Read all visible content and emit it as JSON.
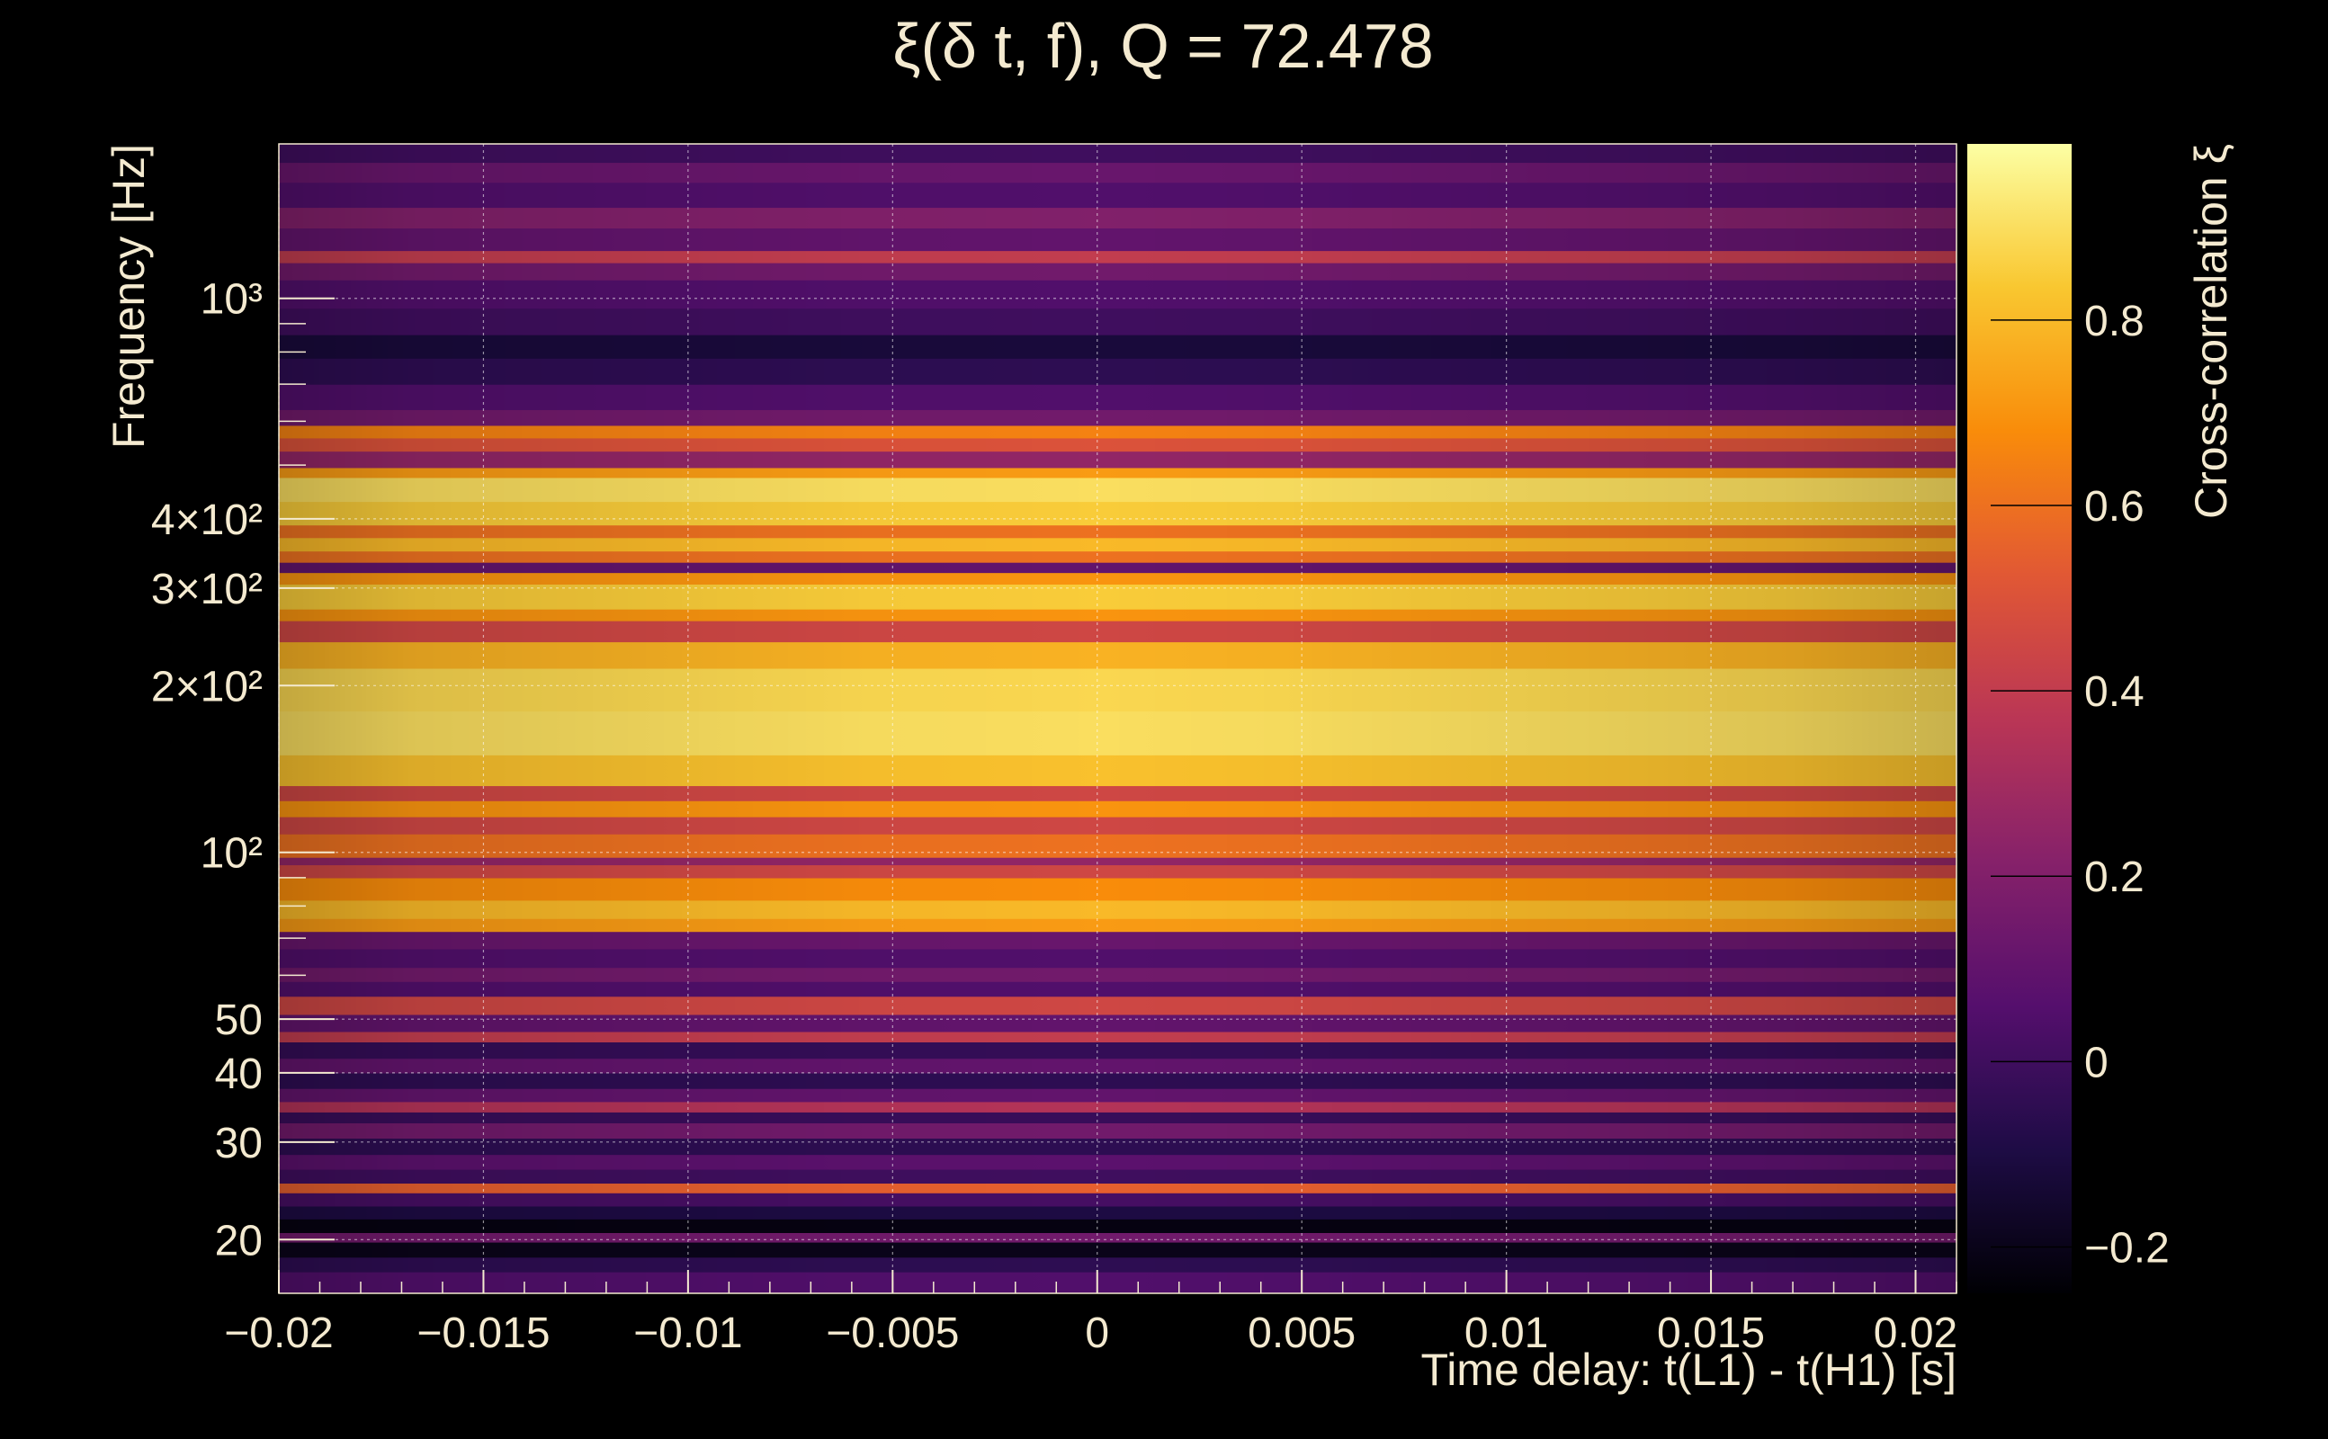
{
  "chart_data": {
    "type": "heatmap",
    "title": "ξ(δ t, f), Q = 72.478",
    "xlabel": "Time delay: t(L1) - t(H1) [s]",
    "ylabel": "Frequency [Hz]",
    "colorbar_label": "Cross-correlation ξ",
    "x_range": [
      -0.02,
      0.021
    ],
    "y_range": [
      16,
      1900
    ],
    "y_scale": "log",
    "color_range": [
      -0.25,
      0.99
    ],
    "colormap": "inferno",
    "grid": true,
    "x_ticks": [
      {
        "value": -0.02,
        "label": "−0.02"
      },
      {
        "value": -0.015,
        "label": "−0.015"
      },
      {
        "value": -0.01,
        "label": "−0.01"
      },
      {
        "value": -0.005,
        "label": "−0.005"
      },
      {
        "value": 0,
        "label": "0"
      },
      {
        "value": 0.005,
        "label": "0.005"
      },
      {
        "value": 0.01,
        "label": "0.01"
      },
      {
        "value": 0.015,
        "label": "0.015"
      },
      {
        "value": 0.02,
        "label": "0.02"
      }
    ],
    "y_ticks": [
      {
        "value": 20,
        "label": "20"
      },
      {
        "value": 30,
        "label": "30"
      },
      {
        "value": 40,
        "label": "40"
      },
      {
        "value": 50,
        "label": "50"
      },
      {
        "value": 100,
        "label": "10²"
      },
      {
        "value": 200,
        "label": "2×10²"
      },
      {
        "value": 300,
        "label": "3×10²"
      },
      {
        "value": 400,
        "label": "4×10²"
      },
      {
        "value": 1000,
        "label": "10³"
      }
    ],
    "colorbar_ticks": [
      {
        "value": -0.2,
        "label": "−0.2"
      },
      {
        "value": 0,
        "label": "0"
      },
      {
        "value": 0.2,
        "label": "0.2"
      },
      {
        "value": 0.4,
        "label": "0.4"
      },
      {
        "value": 0.6,
        "label": "0.6"
      },
      {
        "value": 0.8,
        "label": "0.8"
      }
    ],
    "frequency_bands": [
      {
        "f_low": 16,
        "f_high": 17.5,
        "value": 0.05
      },
      {
        "f_low": 17.5,
        "f_high": 18.6,
        "value": -0.05
      },
      {
        "f_low": 18.6,
        "f_high": 19.8,
        "value": -0.2
      },
      {
        "f_low": 19.8,
        "f_high": 20.6,
        "value": 0.15
      },
      {
        "f_low": 20.6,
        "f_high": 21.8,
        "value": -0.22
      },
      {
        "f_low": 21.8,
        "f_high": 23.0,
        "value": -0.1
      },
      {
        "f_low": 23.0,
        "f_high": 24.3,
        "value": 0.02
      },
      {
        "f_low": 24.3,
        "f_high": 25.3,
        "value": 0.55
      },
      {
        "f_low": 25.3,
        "f_high": 26.8,
        "value": 0.0
      },
      {
        "f_low": 26.8,
        "f_high": 28.5,
        "value": 0.08
      },
      {
        "f_low": 28.5,
        "f_high": 30.5,
        "value": -0.05
      },
      {
        "f_low": 30.5,
        "f_high": 32.5,
        "value": 0.15
      },
      {
        "f_low": 32.5,
        "f_high": 34.0,
        "value": -0.02
      },
      {
        "f_low": 34.0,
        "f_high": 35.5,
        "value": 0.35
      },
      {
        "f_low": 35.5,
        "f_high": 37.5,
        "value": 0.1
      },
      {
        "f_low": 37.5,
        "f_high": 40.0,
        "value": -0.05
      },
      {
        "f_low": 40.0,
        "f_high": 42.5,
        "value": 0.1
      },
      {
        "f_low": 42.5,
        "f_high": 45.5,
        "value": -0.03
      },
      {
        "f_low": 45.5,
        "f_high": 47.5,
        "value": 0.4
      },
      {
        "f_low": 47.5,
        "f_high": 51.0,
        "value": 0.1
      },
      {
        "f_low": 51.0,
        "f_high": 55.0,
        "value": 0.45
      },
      {
        "f_low": 55.0,
        "f_high": 58.5,
        "value": 0.05
      },
      {
        "f_low": 58.5,
        "f_high": 62.0,
        "value": 0.15
      },
      {
        "f_low": 62.0,
        "f_high": 67.0,
        "value": 0.05
      },
      {
        "f_low": 67.0,
        "f_high": 72.0,
        "value": 0.12
      },
      {
        "f_low": 72.0,
        "f_high": 76.0,
        "value": 0.72
      },
      {
        "f_low": 76.0,
        "f_high": 82.0,
        "value": 0.8
      },
      {
        "f_low": 82.0,
        "f_high": 90.0,
        "value": 0.68
      },
      {
        "f_low": 90.0,
        "f_high": 95.0,
        "value": 0.45
      },
      {
        "f_low": 95.0,
        "f_high": 98.0,
        "value": 0.25
      },
      {
        "f_low": 98.0,
        "f_high": 108.0,
        "value": 0.6
      },
      {
        "f_low": 108.0,
        "f_high": 116.0,
        "value": 0.45
      },
      {
        "f_low": 116.0,
        "f_high": 124.0,
        "value": 0.7
      },
      {
        "f_low": 124.0,
        "f_high": 132.0,
        "value": 0.45
      },
      {
        "f_low": 132.0,
        "f_high": 150.0,
        "value": 0.82
      },
      {
        "f_low": 150.0,
        "f_high": 180.0,
        "value": 0.9
      },
      {
        "f_low": 180.0,
        "f_high": 215.0,
        "value": 0.88
      },
      {
        "f_low": 215.0,
        "f_high": 240.0,
        "value": 0.78
      },
      {
        "f_low": 240.0,
        "f_high": 262.0,
        "value": 0.45
      },
      {
        "f_low": 262.0,
        "f_high": 275.0,
        "value": 0.7
      },
      {
        "f_low": 275.0,
        "f_high": 305.0,
        "value": 0.85
      },
      {
        "f_low": 305.0,
        "f_high": 320.0,
        "value": 0.7
      },
      {
        "f_low": 320.0,
        "f_high": 334.0,
        "value": 0.1
      },
      {
        "f_low": 334.0,
        "f_high": 350.0,
        "value": 0.6
      },
      {
        "f_low": 350.0,
        "f_high": 370.0,
        "value": 0.8
      },
      {
        "f_low": 370.0,
        "f_high": 390.0,
        "value": 0.6
      },
      {
        "f_low": 390.0,
        "f_high": 430.0,
        "value": 0.85
      },
      {
        "f_low": 430.0,
        "f_high": 475.0,
        "value": 0.9
      },
      {
        "f_low": 475.0,
        "f_high": 495.0,
        "value": 0.72
      },
      {
        "f_low": 495.0,
        "f_high": 530.0,
        "value": 0.25
      },
      {
        "f_low": 530.0,
        "f_high": 560.0,
        "value": 0.5
      },
      {
        "f_low": 560.0,
        "f_high": 590.0,
        "value": 0.65
      },
      {
        "f_low": 590.0,
        "f_high": 630.0,
        "value": 0.15
      },
      {
        "f_low": 630.0,
        "f_high": 700.0,
        "value": 0.05
      },
      {
        "f_low": 700.0,
        "f_high": 780.0,
        "value": -0.05
      },
      {
        "f_low": 780.0,
        "f_high": 860.0,
        "value": -0.12
      },
      {
        "f_low": 860.0,
        "f_high": 960.0,
        "value": 0.0
      },
      {
        "f_low": 960.0,
        "f_high": 1080.0,
        "value": 0.05
      },
      {
        "f_low": 1080.0,
        "f_high": 1160.0,
        "value": 0.15
      },
      {
        "f_low": 1160.0,
        "f_high": 1220.0,
        "value": 0.4
      },
      {
        "f_low": 1220.0,
        "f_high": 1340.0,
        "value": 0.1
      },
      {
        "f_low": 1340.0,
        "f_high": 1460.0,
        "value": 0.2
      },
      {
        "f_low": 1460.0,
        "f_high": 1620.0,
        "value": 0.05
      },
      {
        "f_low": 1620.0,
        "f_high": 1760.0,
        "value": 0.12
      },
      {
        "f_low": 1760.0,
        "f_high": 1900.0,
        "value": 0.0
      }
    ]
  }
}
